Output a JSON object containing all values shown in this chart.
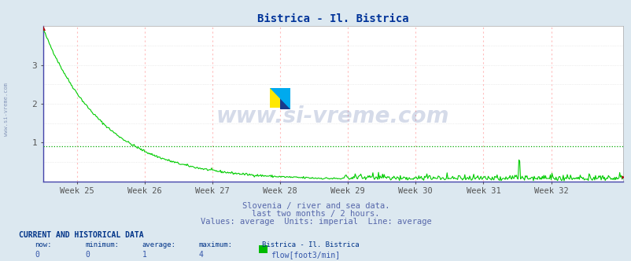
{
  "title": "Bistrica - Il. Bistrica",
  "title_color": "#003399",
  "bg_color": "#dce8f0",
  "plot_bg_color": "#ffffff",
  "grid_color_v": "#ffbbbb",
  "grid_color_h": "#dddddd",
  "line_color": "#00cc00",
  "avg_line_color": "#00aa00",
  "avg_value": 0.9,
  "y_min": 0,
  "y_max": 4.0,
  "y_ticks": [
    1,
    2,
    3
  ],
  "week_labels": [
    "Week 25",
    "Week 26",
    "Week 27",
    "Week 28",
    "Week 29",
    "Week 30",
    "Week 31",
    "Week 32"
  ],
  "xlabel_color": "#5555aa",
  "footer_lines": [
    "Slovenia / river and sea data.",
    "last two months / 2 hours.",
    "Values: average  Units: imperial  Line: average"
  ],
  "footer_color": "#5566aa",
  "watermark": "www.si-vreme.com",
  "watermark_color": "#1a3a8a",
  "watermark_alpha": 0.18,
  "sidebar_text": "www.si-vreme.com",
  "sidebar_color": "#8899bb",
  "current_data_label": "CURRENT AND HISTORICAL DATA",
  "now_val": "0",
  "min_val": "0",
  "avg_val": "1",
  "max_val": "4",
  "station_label": "Bistrica - Il. Bistrica",
  "flow_label": "flow[foot3/min]",
  "swatch_color": "#00bb00",
  "logo_yellow": "#FFE800",
  "logo_blue": "#1a3a8a",
  "logo_cyan": "#00aaee"
}
